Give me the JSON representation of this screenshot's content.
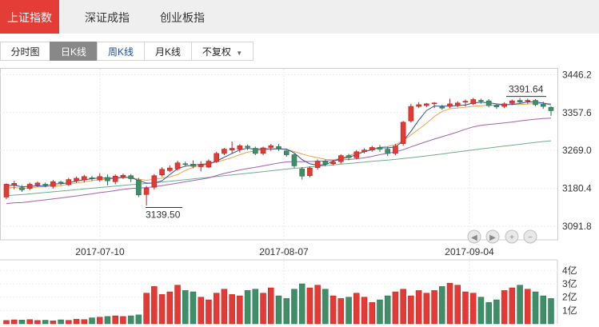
{
  "top_tabs": [
    {
      "label": "上证指数",
      "active": true
    },
    {
      "label": "深证成指",
      "active": false
    },
    {
      "label": "创业板指",
      "active": false
    }
  ],
  "period_tabs": [
    {
      "label": "分时图"
    },
    {
      "label": "日K线",
      "active": true
    },
    {
      "label": "周K线"
    },
    {
      "label": "月K线"
    },
    {
      "label": "不复权",
      "dropdown": true
    }
  ],
  "colors": {
    "up": "#e53935",
    "down": "#3e8f68",
    "accent": "#e43d37",
    "ma5": "#2f4f9c",
    "ma10": "#f0a24a",
    "ma20": "#a75fb0",
    "ma60": "#6fae8a"
  },
  "chart_data": [
    {
      "type": "candlestick",
      "y_ticks": [
        "3446.2",
        "3357.6",
        "3269.0",
        "3180.4",
        "3091.8"
      ],
      "ylim": [
        3060,
        3460
      ],
      "x_tick_labels": [
        "2017-07-10",
        "2017-08-07",
        "2017-09-04"
      ],
      "annotations": {
        "high": "3391.64",
        "low": "3139.50"
      },
      "candles": [
        [
          3160,
          3190,
          3155,
          3192
        ],
        [
          3188,
          3192,
          3178,
          3198
        ],
        [
          3182,
          3177,
          3172,
          3188
        ],
        [
          3180,
          3190,
          3176,
          3194
        ],
        [
          3188,
          3193,
          3184,
          3196
        ],
        [
          3190,
          3188,
          3183,
          3194
        ],
        [
          3185,
          3196,
          3180,
          3200
        ],
        [
          3195,
          3193,
          3188,
          3198
        ],
        [
          3189,
          3201,
          3186,
          3205
        ],
        [
          3198,
          3204,
          3193,
          3208
        ],
        [
          3200,
          3208,
          3194,
          3212
        ],
        [
          3205,
          3203,
          3198,
          3210
        ],
        [
          3200,
          3208,
          3196,
          3216
        ],
        [
          3206,
          3198,
          3187,
          3213
        ],
        [
          3196,
          3209,
          3190,
          3213
        ],
        [
          3207,
          3211,
          3202,
          3215
        ],
        [
          3210,
          3203,
          3195,
          3214
        ],
        [
          3200,
          3165,
          3160,
          3205
        ],
        [
          3166,
          3181,
          3140,
          3186
        ],
        [
          3183,
          3210,
          3178,
          3214
        ],
        [
          3212,
          3225,
          3208,
          3230
        ],
        [
          3222,
          3228,
          3218,
          3234
        ],
        [
          3226,
          3240,
          3222,
          3245
        ],
        [
          3238,
          3237,
          3231,
          3243
        ],
        [
          3237,
          3232,
          3227,
          3246
        ],
        [
          3231,
          3236,
          3220,
          3244
        ],
        [
          3230,
          3244,
          3228,
          3248
        ],
        [
          3243,
          3262,
          3240,
          3266
        ],
        [
          3262,
          3272,
          3258,
          3275
        ],
        [
          3270,
          3274,
          3262,
          3290
        ],
        [
          3272,
          3280,
          3264,
          3284
        ],
        [
          3279,
          3276,
          3270,
          3283
        ],
        [
          3274,
          3262,
          3258,
          3278
        ],
        [
          3262,
          3275,
          3258,
          3278
        ],
        [
          3276,
          3280,
          3268,
          3284
        ],
        [
          3278,
          3273,
          3268,
          3284
        ],
        [
          3268,
          3259,
          3254,
          3270
        ],
        [
          3259,
          3233,
          3228,
          3262
        ],
        [
          3226,
          3209,
          3201,
          3230
        ],
        [
          3210,
          3228,
          3206,
          3232
        ],
        [
          3229,
          3244,
          3224,
          3248
        ],
        [
          3244,
          3237,
          3232,
          3248
        ],
        [
          3238,
          3242,
          3234,
          3247
        ],
        [
          3243,
          3257,
          3238,
          3260
        ],
        [
          3257,
          3252,
          3246,
          3261
        ],
        [
          3252,
          3266,
          3248,
          3270
        ],
        [
          3266,
          3270,
          3262,
          3274
        ],
        [
          3270,
          3276,
          3266,
          3280
        ],
        [
          3276,
          3272,
          3266,
          3282
        ],
        [
          3272,
          3262,
          3256,
          3278
        ],
        [
          3262,
          3279,
          3258,
          3284
        ],
        [
          3285,
          3335,
          3280,
          3338
        ],
        [
          3338,
          3372,
          3334,
          3378
        ],
        [
          3372,
          3376,
          3368,
          3382
        ],
        [
          3374,
          3378,
          3370,
          3380
        ],
        [
          3378,
          3380,
          3368,
          3382
        ],
        [
          3371,
          3368,
          3364,
          3376
        ],
        [
          3372,
          3378,
          3368,
          3390
        ],
        [
          3375,
          3380,
          3370,
          3384
        ],
        [
          3382,
          3384,
          3372,
          3388
        ],
        [
          3378,
          3388,
          3375,
          3392
        ],
        [
          3386,
          3384,
          3378,
          3390
        ],
        [
          3385,
          3374,
          3370,
          3389
        ],
        [
          3375,
          3371,
          3366,
          3378
        ],
        [
          3372,
          3378,
          3368,
          3382
        ],
        [
          3379,
          3385,
          3375,
          3388
        ],
        [
          3386,
          3382,
          3378,
          3391.64
        ],
        [
          3384,
          3386,
          3378,
          3390
        ],
        [
          3386,
          3376,
          3372,
          3389
        ],
        [
          3377,
          3372,
          3366,
          3383
        ],
        [
          3370,
          3362,
          3350,
          3372
        ]
      ],
      "ma_series": [
        {
          "id": "ma5",
          "from": 3157,
          "to": 3390
        },
        {
          "id": "ma10",
          "from": 3155,
          "to": 3382
        },
        {
          "id": "ma20",
          "from": 3120,
          "to": 3327
        },
        {
          "id": "ma60",
          "from": 3160,
          "to": 3282
        }
      ]
    },
    {
      "type": "bar",
      "title": "volume",
      "y_ticks": [
        "4亿",
        "3亿",
        "2亿",
        "1亿"
      ],
      "ylim": [
        0,
        4.8
      ],
      "values": [
        0.25,
        0.3,
        0.28,
        0.32,
        0.25,
        0.27,
        0.22,
        0.3,
        0.26,
        0.35,
        0.32,
        0.45,
        0.5,
        0.55,
        0.6,
        0.55,
        0.6,
        0.67,
        2.3,
        2.8,
        2.2,
        2.4,
        2.9,
        2.5,
        2.4,
        2.0,
        1.8,
        2.3,
        2.6,
        2.2,
        2.1,
        2.5,
        2.6,
        2.3,
        2.7,
        2.1,
        1.9,
        2.6,
        3.0,
        2.7,
        2.9,
        2.6,
        2.1,
        1.9,
        2.0,
        2.3,
        2.0,
        1.6,
        1.8,
        2.1,
        2.4,
        2.6,
        2.1,
        2.5,
        2.3,
        2.5,
        2.8,
        3.05,
        2.9,
        2.4,
        2.3,
        2.0,
        1.6,
        1.8,
        2.5,
        2.7,
        2.9,
        2.6,
        2.4,
        2.1,
        1.9
      ],
      "up": [
        1,
        1,
        0,
        1,
        1,
        0,
        1,
        0,
        1,
        1,
        1,
        0,
        1,
        0,
        1,
        1,
        0,
        0,
        1,
        1,
        1,
        1,
        1,
        0,
        0,
        1,
        1,
        1,
        1,
        1,
        1,
        0,
        0,
        1,
        1,
        0,
        0,
        0,
        0,
        1,
        1,
        0,
        1,
        1,
        0,
        1,
        1,
        1,
        0,
        0,
        1,
        1,
        1,
        1,
        1,
        1,
        0,
        1,
        1,
        1,
        1,
        0,
        0,
        0,
        1,
        1,
        0,
        1,
        0,
        0,
        0
      ]
    }
  ]
}
